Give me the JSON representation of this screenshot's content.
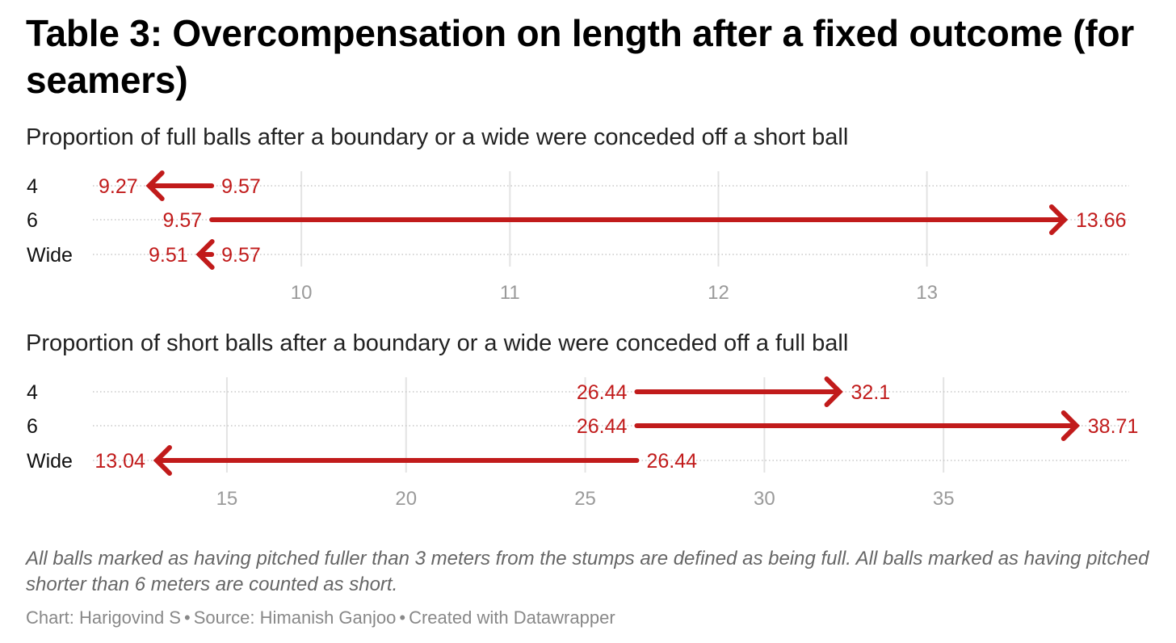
{
  "title": "Table 3: Overcompensation on length after a fixed outcome (for seamers)",
  "colors": {
    "arrow": "#c11b1b",
    "grid": "#e3e3e3",
    "tick": "#9a9a9a",
    "label": "#111111"
  },
  "chart_data": [
    {
      "type": "arrow",
      "subtitle": "Proportion of full balls after a boundary or a wide were conceded off a short ball",
      "xlim": [
        9.0,
        13.97
      ],
      "ticks": [
        10,
        11,
        12,
        13
      ],
      "rows": [
        {
          "label": "4",
          "from": 9.57,
          "to": 9.27,
          "from_label": "9.57",
          "to_label": "9.27"
        },
        {
          "label": "6",
          "from": 9.57,
          "to": 13.66,
          "from_label": "9.57",
          "to_label": "13.66"
        },
        {
          "label": "Wide",
          "from": 9.57,
          "to": 9.51,
          "from_label": "9.57",
          "to_label": "9.51"
        }
      ]
    },
    {
      "type": "arrow",
      "subtitle": "Proportion of short balls after a boundary or a wide were conceded off a full ball",
      "xlim": [
        11.26,
        40.18
      ],
      "ticks": [
        15,
        20,
        25,
        30,
        35
      ],
      "rows": [
        {
          "label": "4",
          "from": 26.44,
          "to": 32.1,
          "from_label": "26.44",
          "to_label": "32.1"
        },
        {
          "label": "6",
          "from": 26.44,
          "to": 38.71,
          "from_label": "26.44",
          "to_label": "38.71"
        },
        {
          "label": "Wide",
          "from": 26.44,
          "to": 13.04,
          "from_label": "26.44",
          "to_label": "13.04"
        }
      ]
    }
  ],
  "notes": "All balls marked as having pitched fuller than 3 meters from the stumps are defined as being full. All balls marked as having pitched shorter than 6 meters are counted as short.",
  "credit": {
    "chart": "Chart: Harigovind S",
    "source": "Source: Himanish Ganjoo",
    "tool": "Created with Datawrapper",
    "separator": "•"
  }
}
